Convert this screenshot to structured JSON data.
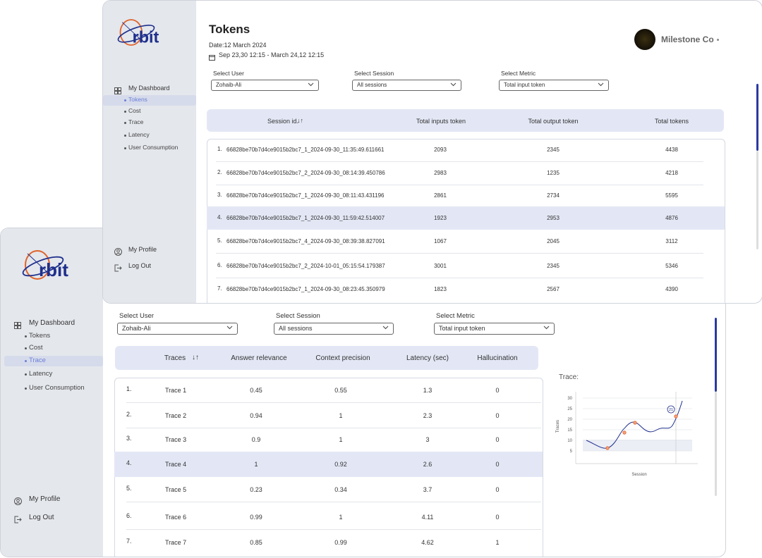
{
  "front": {
    "logo": "rbit",
    "nav": {
      "dashboard": "My Dashboard",
      "items": [
        "Tokens",
        "Cost",
        "Trace",
        "Latency",
        "User Consumption"
      ],
      "profile": "My Profile",
      "logout": "Log Out"
    },
    "filters": [
      {
        "label": "Select User",
        "value": "Zohaib-Ali"
      },
      {
        "label": "Select Session",
        "value": "All sessions"
      },
      {
        "label": "Select Metric",
        "value": "Total input token"
      }
    ],
    "table": {
      "headers": [
        "Traces",
        "Answer relevance",
        "Context precision",
        "Latency (sec)",
        "Hallucination"
      ],
      "rows": [
        [
          "1.",
          "Trace 1",
          0.45,
          0.55,
          1.3,
          0
        ],
        [
          "2.",
          "Trace 2",
          0.94,
          1,
          2.3,
          0
        ],
        [
          "3.",
          "Trace 3",
          0.9,
          1,
          3,
          0
        ],
        [
          "4.",
          "Trace 4",
          1,
          0.92,
          2.6,
          0
        ],
        [
          "5.",
          "Trace 5",
          0.23,
          0.34,
          3.7,
          0
        ],
        [
          "6.",
          "Trace 6",
          0.99,
          1,
          4.11,
          0
        ],
        [
          "7.",
          "Trace 7",
          0.85,
          0.99,
          4.62,
          1
        ]
      ]
    },
    "trace_chart": {
      "title": "Trace:",
      "y_label": "Traces",
      "x_label": "Session",
      "ylim": [
        0,
        33
      ],
      "yticks": [
        5,
        10,
        15,
        20,
        25,
        30
      ],
      "annotation": "21"
    }
  },
  "back": {
    "logo": "rbit",
    "nav": {
      "dashboard": "My Dashboard",
      "items": [
        "Tokens",
        "Cost",
        "Trace",
        "Latency",
        "User Consumption"
      ],
      "profile": "My Profile",
      "logout": "Log Out"
    },
    "title": "Tokens",
    "date": "Date:12 March 2024",
    "range": "Sep 23,30  12:15 - March 24,12  12:15",
    "org": "Milestone Co",
    "filters": [
      {
        "label": "Select User",
        "value": "Zohaib-Ali"
      },
      {
        "label": "Select Session",
        "value": "All sessions"
      },
      {
        "label": "Select Metric",
        "value": "Total input token"
      }
    ],
    "table": {
      "headers": [
        "Session id.",
        "Total inputs token",
        "Total output token",
        "Total tokens"
      ],
      "rows": [
        [
          "1.",
          "66828be70b7d4ce9015b2bc7_1_2024-09-30_11:35:49.611661",
          2093,
          2345,
          4438
        ],
        [
          "2.",
          "66828be70b7d4ce9015b2bc7_2_2024-09-30_08:14:39.450786",
          2983,
          1235,
          4218
        ],
        [
          "3.",
          "66828be70b7d4ce9015b2bc7_1_2024-09-30_08:11:43.431196",
          2861,
          2734,
          5595
        ],
        [
          "4.",
          "66828be70b7d4ce9015b2bc7_1_2024-09-30_11:59:42.514007",
          1923,
          2953,
          4876
        ],
        [
          "5.",
          "66828be70b7d4ce9015b2bc7_4_2024-09-30_08:39:38.827091",
          1067,
          2045,
          3112
        ],
        [
          "6.",
          "66828be70b7d4ce9015b2bc7_2_2024-10-01_05:15:54.179387",
          3001,
          2345,
          5346
        ],
        [
          "7.",
          "66828be70b7d4ce9015b2bc7_1_2024-09-30_08:23:45.350979",
          1823,
          2567,
          4390
        ]
      ]
    }
  }
}
